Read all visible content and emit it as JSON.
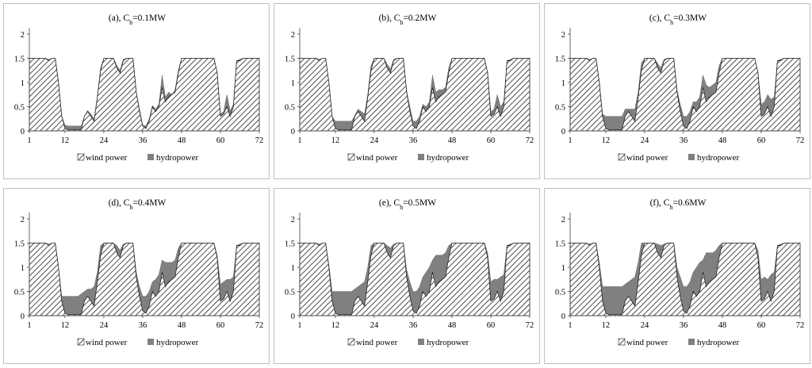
{
  "legend_labels": [
    "wind power",
    "hydropower"
  ],
  "chart_data": [
    {
      "type": "area",
      "title_prefix": "(a), C",
      "title_sub": "h",
      "title_suffix": "=0.1MW",
      "x_ticks": [
        1,
        12,
        24,
        36,
        48,
        60,
        72
      ],
      "y_ticks": [
        "0",
        "0.5",
        "1",
        "1.5",
        "2"
      ],
      "xlim": [
        1,
        72
      ],
      "ylim": [
        0,
        2
      ],
      "grid": false,
      "legend": "bottom-center",
      "series": [
        {
          "values": []
        },
        {
          "values": []
        }
      ]
    },
    {
      "type": "area",
      "title_prefix": "(b), C",
      "title_sub": "h",
      "title_suffix": "=0.2MW",
      "x_ticks": [
        1,
        12,
        24,
        36,
        48,
        60,
        72
      ],
      "y_ticks": [
        "0",
        "0.5",
        "1",
        "1.5",
        "2"
      ],
      "xlim": [
        1,
        72
      ],
      "ylim": [
        0,
        2
      ],
      "grid": false,
      "legend": "bottom-center",
      "series": [
        {
          "values": []
        },
        {
          "values": []
        }
      ]
    },
    {
      "type": "area",
      "title_prefix": "(c), C",
      "title_sub": "h",
      "title_suffix": "=0.3MW",
      "x_ticks": [
        1,
        12,
        24,
        36,
        48,
        60,
        72
      ],
      "y_ticks": [
        "0",
        "0.5",
        "1",
        "1.5",
        "2"
      ],
      "xlim": [
        1,
        72
      ],
      "ylim": [
        0,
        2
      ],
      "grid": false,
      "legend": "bottom-center",
      "series": [
        {
          "values": []
        },
        {
          "values": []
        }
      ]
    },
    {
      "type": "area",
      "title_prefix": "(d), C",
      "title_sub": "h",
      "title_suffix": "=0.4MW",
      "x_ticks": [
        1,
        12,
        24,
        36,
        48,
        60,
        72
      ],
      "y_ticks": [
        "0",
        "0.5",
        "1",
        "1.5",
        "2"
      ],
      "xlim": [
        1,
        72
      ],
      "ylim": [
        0,
        2
      ],
      "grid": false,
      "legend": "bottom-center",
      "series": [
        {
          "values": []
        },
        {
          "values": []
        }
      ]
    },
    {
      "type": "area",
      "title_prefix": "(e), C",
      "title_sub": "h",
      "title_suffix": "=0.5MW",
      "x_ticks": [
        1,
        12,
        24,
        36,
        48,
        60,
        72
      ],
      "y_ticks": [
        "0",
        "0.5",
        "1",
        "1.5",
        "2"
      ],
      "xlim": [
        1,
        72
      ],
      "ylim": [
        0,
        2
      ],
      "grid": false,
      "legend": "bottom-center",
      "series": [
        {
          "values": []
        },
        {
          "values": []
        }
      ]
    },
    {
      "type": "area",
      "title_prefix": "(f), C",
      "title_sub": "h",
      "title_suffix": "=0.6MW",
      "x_ticks": [
        1,
        12,
        24,
        36,
        48,
        60,
        72
      ],
      "y_ticks": [
        "0",
        "0.5",
        "1",
        "1.5",
        "2"
      ],
      "xlim": [
        1,
        72
      ],
      "ylim": [
        0,
        2
      ],
      "grid": false,
      "legend": "bottom-center",
      "series": [
        {
          "values": []
        },
        {
          "values": []
        }
      ]
    }
  ],
  "wind_values": [
    1.5,
    1.5,
    1.5,
    1.5,
    1.5,
    1.5,
    1.45,
    1.5,
    1.5,
    1.0,
    0.3,
    0.05,
    0.02,
    0.02,
    0.02,
    0.02,
    0.02,
    0.3,
    0.4,
    0.3,
    0.2,
    0.7,
    1.25,
    1.5,
    1.5,
    1.5,
    1.5,
    1.3,
    1.2,
    1.45,
    1.5,
    1.5,
    1.5,
    0.8,
    0.4,
    0.1,
    0.05,
    0.2,
    0.5,
    0.4,
    0.5,
    0.9,
    0.6,
    0.7,
    0.75,
    0.8,
    1.2,
    1.5,
    1.5,
    1.5,
    1.5,
    1.5,
    1.5,
    1.5,
    1.5,
    1.5,
    1.5,
    1.5,
    1.2,
    0.3,
    0.35,
    0.5,
    0.3,
    0.5,
    1.45,
    1.45,
    1.5,
    1.5,
    1.5,
    1.5,
    1.5,
    1.5
  ],
  "hydro_totals": [
    [
      1.5,
      1.5,
      1.5,
      1.5,
      1.5,
      1.5,
      1.48,
      1.5,
      1.5,
      1.0,
      0.3,
      0.12,
      0.1,
      0.1,
      0.1,
      0.1,
      0.1,
      0.3,
      0.42,
      0.35,
      0.25,
      0.7,
      1.3,
      1.5,
      1.5,
      1.5,
      1.5,
      1.35,
      1.25,
      1.48,
      1.5,
      1.5,
      1.5,
      0.8,
      0.45,
      0.12,
      0.1,
      0.25,
      0.52,
      0.45,
      0.55,
      1.15,
      0.7,
      0.8,
      0.75,
      0.85,
      1.25,
      1.5,
      1.5,
      1.5,
      1.5,
      1.5,
      1.5,
      1.5,
      1.5,
      1.5,
      1.5,
      1.5,
      1.2,
      0.35,
      0.4,
      0.75,
      0.42,
      0.55,
      1.45,
      1.48,
      1.5,
      1.5,
      1.5,
      1.5,
      1.5,
      1.5
    ],
    [
      1.5,
      1.5,
      1.5,
      1.5,
      1.5,
      1.5,
      1.48,
      1.5,
      1.5,
      1.0,
      0.3,
      0.2,
      0.2,
      0.2,
      0.2,
      0.2,
      0.2,
      0.32,
      0.45,
      0.4,
      0.35,
      0.75,
      1.35,
      1.5,
      1.5,
      1.5,
      1.5,
      1.38,
      1.28,
      1.48,
      1.5,
      1.5,
      1.5,
      0.82,
      0.5,
      0.2,
      0.2,
      0.3,
      0.55,
      0.5,
      0.6,
      1.15,
      0.8,
      0.85,
      0.85,
      0.9,
      1.3,
      1.5,
      1.5,
      1.5,
      1.5,
      1.5,
      1.5,
      1.5,
      1.5,
      1.5,
      1.5,
      1.5,
      1.2,
      0.4,
      0.45,
      0.75,
      0.5,
      0.6,
      1.45,
      1.48,
      1.5,
      1.5,
      1.5,
      1.5,
      1.5,
      1.5
    ],
    [
      1.5,
      1.5,
      1.5,
      1.5,
      1.5,
      1.5,
      1.48,
      1.5,
      1.5,
      1.0,
      0.35,
      0.3,
      0.3,
      0.3,
      0.3,
      0.3,
      0.3,
      0.45,
      0.45,
      0.45,
      0.45,
      0.8,
      1.4,
      1.5,
      1.5,
      1.5,
      1.5,
      1.4,
      1.3,
      1.48,
      1.5,
      1.5,
      1.5,
      0.85,
      0.55,
      0.3,
      0.3,
      0.4,
      0.6,
      0.6,
      0.7,
      1.15,
      0.95,
      0.9,
      0.95,
      1.0,
      1.35,
      1.5,
      1.5,
      1.5,
      1.5,
      1.5,
      1.5,
      1.5,
      1.5,
      1.5,
      1.5,
      1.5,
      1.2,
      0.55,
      0.6,
      0.75,
      0.65,
      0.7,
      1.45,
      1.48,
      1.5,
      1.5,
      1.5,
      1.5,
      1.5,
      1.5
    ],
    [
      1.5,
      1.5,
      1.5,
      1.5,
      1.5,
      1.5,
      1.48,
      1.5,
      1.5,
      1.0,
      0.4,
      0.4,
      0.4,
      0.4,
      0.4,
      0.4,
      0.45,
      0.5,
      0.55,
      0.55,
      0.6,
      0.9,
      1.45,
      1.5,
      1.5,
      1.5,
      1.5,
      1.45,
      1.35,
      1.48,
      1.5,
      1.5,
      1.5,
      0.9,
      0.6,
      0.4,
      0.4,
      0.5,
      0.7,
      0.75,
      0.85,
      1.15,
      1.1,
      1.1,
      1.1,
      1.15,
      1.4,
      1.5,
      1.5,
      1.5,
      1.5,
      1.5,
      1.5,
      1.5,
      1.5,
      1.5,
      1.5,
      1.5,
      1.25,
      0.65,
      0.7,
      0.75,
      0.75,
      0.8,
      1.45,
      1.48,
      1.5,
      1.5,
      1.5,
      1.5,
      1.5,
      1.5
    ],
    [
      1.5,
      1.5,
      1.5,
      1.5,
      1.5,
      1.5,
      1.48,
      1.5,
      1.5,
      1.05,
      0.5,
      0.5,
      0.5,
      0.5,
      0.5,
      0.5,
      0.5,
      0.55,
      0.6,
      0.65,
      0.7,
      1.0,
      1.45,
      1.5,
      1.5,
      1.5,
      1.5,
      1.45,
      1.4,
      1.48,
      1.5,
      1.5,
      1.5,
      0.95,
      0.7,
      0.5,
      0.5,
      0.6,
      0.8,
      0.9,
      1.0,
      1.15,
      1.25,
      1.25,
      1.25,
      1.3,
      1.45,
      1.5,
      1.5,
      1.5,
      1.5,
      1.5,
      1.5,
      1.5,
      1.5,
      1.5,
      1.5,
      1.5,
      1.3,
      0.7,
      0.75,
      0.75,
      0.8,
      0.85,
      1.45,
      1.48,
      1.5,
      1.5,
      1.5,
      1.5,
      1.5,
      1.5
    ],
    [
      1.5,
      1.5,
      1.5,
      1.5,
      1.5,
      1.5,
      1.48,
      1.5,
      1.5,
      1.1,
      0.6,
      0.6,
      0.6,
      0.6,
      0.6,
      0.6,
      0.6,
      0.65,
      0.7,
      0.75,
      0.8,
      1.1,
      1.5,
      1.5,
      1.5,
      1.5,
      1.5,
      1.48,
      1.45,
      1.48,
      1.5,
      1.5,
      1.5,
      1.0,
      0.8,
      0.6,
      0.6,
      0.7,
      0.9,
      1.0,
      1.1,
      1.15,
      1.3,
      1.3,
      1.3,
      1.35,
      1.45,
      1.5,
      1.5,
      1.5,
      1.5,
      1.5,
      1.5,
      1.5,
      1.5,
      1.5,
      1.5,
      1.5,
      1.35,
      0.75,
      0.8,
      0.75,
      0.85,
      0.9,
      1.45,
      1.48,
      1.5,
      1.5,
      1.5,
      1.5,
      1.5,
      1.5
    ]
  ]
}
